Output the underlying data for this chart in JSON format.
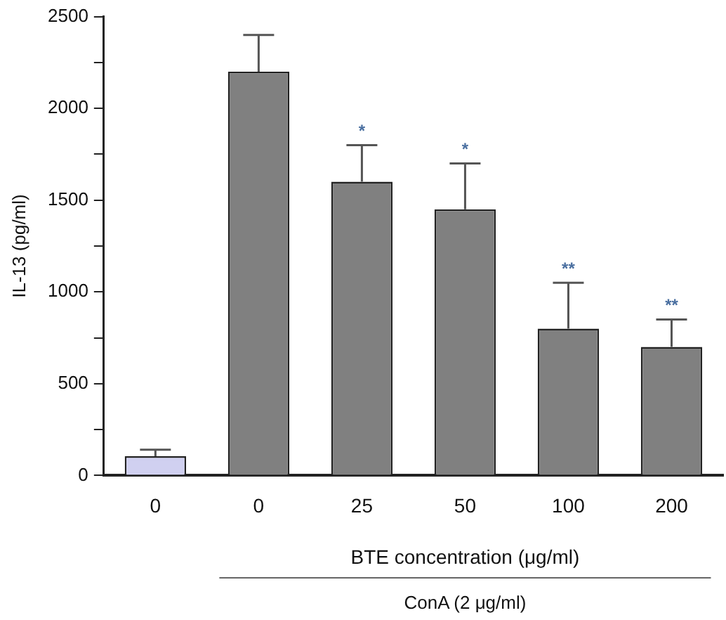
{
  "chart_data": {
    "type": "bar",
    "categories": [
      "0",
      "0",
      "25",
      "50",
      "100",
      "200"
    ],
    "values": [
      105,
      2200,
      1600,
      1450,
      800,
      700
    ],
    "colors": [
      "#d0d0f0",
      "#808080",
      "#808080",
      "#808080",
      "#808080",
      "#808080"
    ],
    "errors": [
      [
        105,
        140
      ],
      [
        2200,
        2400
      ],
      [
        1600,
        1800
      ],
      [
        1450,
        1700
      ],
      [
        800,
        1050
      ],
      [
        700,
        850
      ]
    ],
    "value_labels": [
      null,
      null,
      "*",
      "*",
      "**",
      "**"
    ],
    "ylabel": "IL-13 (pg/ml)",
    "xlabel": "BTE concentration (μg/ml)",
    "ylim": [
      0,
      2500
    ],
    "yticks": [
      0,
      {
        "value": 250,
        "label": null
      },
      500,
      {
        "value": 750,
        "label": null
      },
      1000,
      {
        "value": 1250,
        "label": null
      },
      1500,
      {
        "value": 1750,
        "label": null
      },
      2000,
      {
        "value": 2250,
        "label": null
      },
      2500
    ],
    "annotations": [
      "ConA (2 μg/ml)"
    ],
    "grid": false,
    "legend": false
  }
}
